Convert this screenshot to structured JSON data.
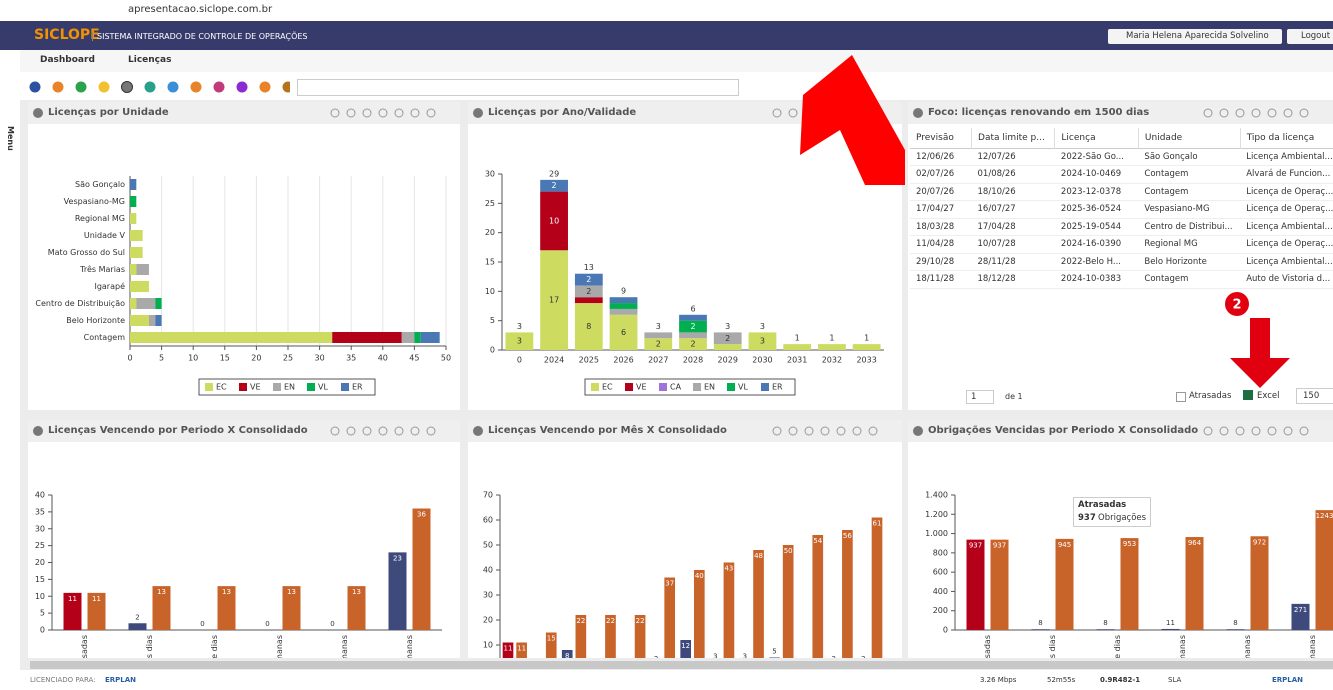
{
  "browser": {
    "url": "apresentacao.siclope.com.br"
  },
  "header": {
    "logo": "SICLOPE",
    "system": "SISTEMA INTEGRADO DE CONTROLE DE OPERAÇÕES",
    "user": "Maria Helena Aparecida Solvelino",
    "logout": "Logout"
  },
  "sidebar": {
    "label": "Menu"
  },
  "tabs": [
    "Dashboard",
    "Licenças"
  ],
  "panels": [
    {
      "title": "Licenças por Unidade",
      "chart": {
        "type": "hbar-stacked",
        "categories": [
          "São Gonçalo",
          "Vespasiano-MG",
          "Regional MG",
          "Unidade V",
          "Mato Grosso do Sul",
          "Três Marias",
          "Igarapé",
          "Centro de Distribuição",
          "Belo Horizonte",
          "Contagem"
        ],
        "series": [
          {
            "name": "EC",
            "color": "#cddc60",
            "values": [
              0,
              0,
              1,
              2,
              2,
              1,
              3,
              1,
              3,
              32
            ]
          },
          {
            "name": "VE",
            "color": "#b5001a",
            "values": [
              0,
              0,
              0,
              0,
              0,
              0,
              0,
              0,
              0,
              11
            ]
          },
          {
            "name": "EN",
            "color": "#a9a9a9",
            "values": [
              0,
              0,
              0,
              0,
              0,
              2,
              0,
              3,
              1,
              2
            ]
          },
          {
            "name": "VL",
            "color": "#00b050",
            "values": [
              0,
              1,
              0,
              0,
              0,
              0,
              0,
              1,
              0,
              1
            ]
          },
          {
            "name": "ER",
            "color": "#4a78b5",
            "values": [
              1,
              0,
              0,
              0,
              0,
              0,
              0,
              0,
              1,
              3
            ]
          }
        ],
        "xlim": [
          0,
          50
        ],
        "xticks": [
          0,
          5,
          10,
          15,
          20,
          25,
          30,
          35,
          40,
          45,
          50
        ],
        "grid": true,
        "legend": "bottom"
      }
    },
    {
      "title": "Licenças por Ano/Validade",
      "chart": {
        "type": "bar-stacked",
        "categories": [
          "0",
          "2024",
          "2025",
          "2026",
          "2027",
          "2028",
          "2029",
          "2030",
          "2031",
          "2032",
          "2033"
        ],
        "series": [
          {
            "name": "EC",
            "color": "#cddc60",
            "values": [
              3,
              17,
              8,
              6,
              2,
              2,
              1,
              3,
              1,
              1,
              1
            ]
          },
          {
            "name": "VE",
            "color": "#b5001a",
            "values": [
              0,
              10,
              1,
              0,
              0,
              0,
              0,
              0,
              0,
              0,
              0
            ]
          },
          {
            "name": "CA",
            "color": "#9e72d6",
            "values": [
              0,
              0,
              0,
              0,
              0,
              0,
              0,
              0,
              0,
              0,
              0
            ]
          },
          {
            "name": "EN",
            "color": "#a9a9a9",
            "values": [
              0,
              0,
              2,
              1,
              1,
              1,
              2,
              0,
              0,
              0,
              0
            ]
          },
          {
            "name": "VL",
            "color": "#00b050",
            "values": [
              0,
              0,
              0,
              1,
              0,
              2,
              0,
              0,
              0,
              0,
              0
            ]
          },
          {
            "name": "ER",
            "color": "#4a78b5",
            "values": [
              0,
              2,
              2,
              1,
              0,
              1,
              0,
              0,
              0,
              0,
              0
            ]
          }
        ],
        "totals": [
          3,
          29,
          13,
          9,
          3,
          6,
          3,
          3,
          1,
          1,
          1
        ],
        "ylim": [
          0,
          30
        ],
        "yticks": [
          0,
          5,
          10,
          15,
          20,
          25,
          30
        ],
        "grid": false,
        "legend": "bottom"
      }
    },
    {
      "title": "Foco: licenças renovando em 1500 dias",
      "table": {
        "columns": [
          "Previsão",
          "Data limite p...",
          "Licença",
          "Unidade",
          "Tipo da licença"
        ],
        "rows": [
          [
            "12/06/26",
            "12/07/26",
            "2022-São Go...",
            "São Gonçalo",
            "Licença Ambiental..."
          ],
          [
            "02/07/26",
            "01/08/26",
            "2024-10-0469",
            "Contagem",
            "Alvará de Funcion..."
          ],
          [
            "20/07/26",
            "18/10/26",
            "2023-12-0378",
            "Contagem",
            "Licença de Operaç..."
          ],
          [
            "17/04/27",
            "16/07/27",
            "2025-36-0524",
            "Vespasiano-MG",
            "Licença de Operaç..."
          ],
          [
            "18/03/28",
            "17/04/28",
            "2025-19-0544",
            "Centro de Distribui...",
            "Licença Ambiental..."
          ],
          [
            "11/04/28",
            "10/07/28",
            "2024-16-0390",
            "Regional MG",
            "Licença de Operaç..."
          ],
          [
            "29/10/28",
            "28/11/28",
            "2022-Belo H...",
            "Belo Horizonte",
            "Licença Ambiental..."
          ],
          [
            "18/11/28",
            "18/12/28",
            "2024-10-0383",
            "Contagem",
            "Auto de Vistoria d..."
          ]
        ]
      },
      "pager": {
        "page": "1",
        "of": "de 1",
        "late": "Atrasadas",
        "excel": "Excel",
        "size": "150"
      }
    },
    {
      "title": "Licenças Vencendo por Periodo X Consolidado",
      "chart": {
        "type": "bar-grouped",
        "categories": [
          "sadas",
          "s dias",
          "te dias",
          "manas",
          "manas",
          "manas"
        ],
        "series": [
          {
            "colors": [
              "#b5001a",
              "#3f4a7c",
              "#3f4a7c",
              "#3f4a7c",
              "#3f4a7c",
              "#3f4a7c"
            ],
            "values": [
              11,
              2,
              0,
              0,
              0,
              23
            ]
          },
          {
            "color": "#c8632a",
            "values": [
              11,
              13,
              13,
              13,
              13,
              36
            ]
          }
        ],
        "ylim": [
          0,
          40
        ],
        "yticks": [
          0,
          5,
          10,
          15,
          20,
          25,
          30,
          35,
          40
        ],
        "grid": false
      }
    },
    {
      "title": "Licenças Vencendo por Mês X Consolidado",
      "chart": {
        "type": "bar-grouped",
        "categories": [
          null,
          null,
          null,
          null,
          null,
          null,
          null,
          null,
          null,
          null,
          null,
          null,
          null
        ],
        "series": [
          {
            "colors": [
              "#b5001a",
              "#3f4a7c",
              "#3f4a7c",
              "#3f4a7c",
              "#3f4a7c",
              "#3f4a7c",
              "#3f4a7c",
              "#3f4a7c",
              "#3f4a7c",
              "#3f4a7c",
              "#3f4a7c",
              "#3f4a7c",
              "#3f4a7c"
            ],
            "values": [
              11,
              null,
              8,
              null,
              null,
              2,
              12,
              3,
              3,
              5,
              null,
              2,
              2
            ]
          },
          {
            "color": "#c8632a",
            "values": [
              11,
              15,
              22,
              22,
              22,
              37,
              40,
              43,
              48,
              50,
              54,
              56,
              61
            ]
          }
        ],
        "ylim": [
          0,
          70
        ],
        "yticks": [
          10,
          20,
          30,
          40,
          50,
          60,
          70
        ],
        "grid": false
      }
    },
    {
      "title": "Obrigações Vencidas por Periodo X Consolidado",
      "chart": {
        "type": "bar-grouped",
        "categories": [
          "sadas",
          "s dias",
          "te dias",
          "manas",
          "manas",
          "manas"
        ],
        "series": [
          {
            "colors": [
              "#b5001a",
              "#3f4a7c",
              "#3f4a7c",
              "#3f4a7c",
              "#3f4a7c",
              "#3f4a7c"
            ],
            "values": [
              937,
              8,
              8,
              11,
              8,
              271
            ]
          },
          {
            "color": "#c8632a",
            "values": [
              937,
              945,
              953,
              964,
              972,
              1243
            ]
          }
        ],
        "ylim": [
          0,
          1400
        ],
        "yticks": [
          0,
          200,
          400,
          600,
          800,
          {
            "value": 1000,
            "label": "1.000"
          },
          {
            "value": 1200,
            "label": "1.200"
          },
          {
            "value": 1400,
            "label": "1.400"
          }
        ],
        "grid": false
      },
      "tooltip": {
        "title": "Atrasadas",
        "value": 937,
        "unit": "Obrigações"
      }
    }
  ],
  "annotations": {
    "badge": "2"
  },
  "footer": {
    "licensed": "LICENCIADO PARA:",
    "client": "ERPLAN",
    "speed": "3.26 Mbps",
    "time": "52m55s",
    "version": "0.9R482-1",
    "sla": "SLA",
    "brand": "ERPLAN"
  }
}
